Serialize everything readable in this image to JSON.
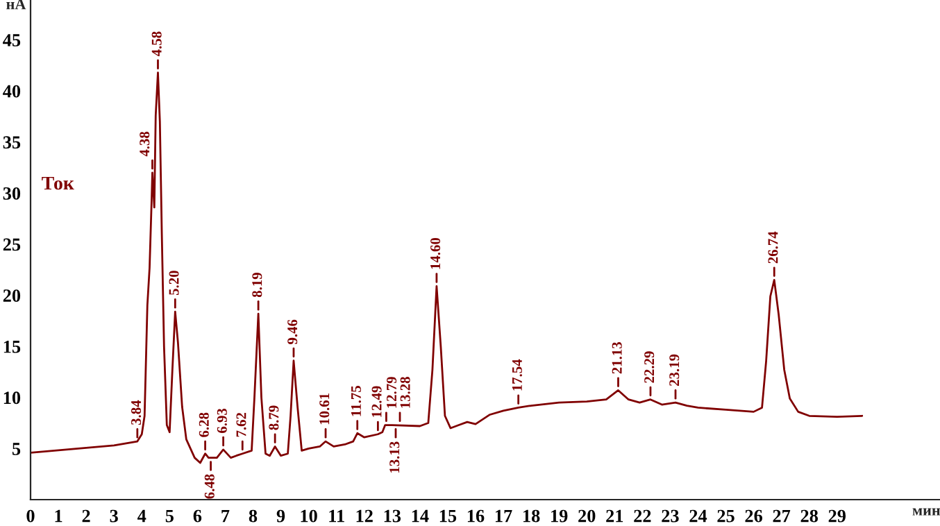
{
  "chart_data": {
    "type": "line",
    "xlabel": "мин",
    "ylabel": "нА",
    "xlim": [
      0,
      32.7
    ],
    "ylim": [
      0,
      48.9
    ],
    "xticks": [
      0,
      1,
      2,
      3,
      4,
      5,
      6,
      7,
      8,
      9,
      10,
      11,
      12,
      13,
      14,
      15,
      16,
      17,
      18,
      19,
      20,
      21,
      22,
      23,
      24,
      25,
      26,
      27,
      28,
      29
    ],
    "yticks": [
      5,
      10,
      15,
      20,
      25,
      30,
      35,
      40,
      45
    ],
    "grid": false,
    "legend": false,
    "marker": "none",
    "line_style": "solid",
    "series": [
      {
        "name": "Ток",
        "color": "#800000",
        "x": [
          0,
          3,
          3.84,
          4.0,
          4.1,
          4.2,
          4.28,
          4.35,
          4.38,
          4.45,
          4.5,
          4.58,
          4.65,
          4.72,
          4.8,
          4.9,
          5.0,
          5.1,
          5.2,
          5.3,
          5.45,
          5.6,
          5.9,
          6.1,
          6.28,
          6.4,
          6.7,
          6.93,
          7.2,
          7.4,
          7.62,
          7.95,
          8.05,
          8.19,
          8.3,
          8.45,
          8.6,
          8.79,
          9.0,
          9.25,
          9.35,
          9.46,
          9.6,
          9.75,
          10.0,
          10.4,
          10.61,
          10.9,
          11.3,
          11.6,
          11.75,
          12.0,
          12.49,
          12.65,
          12.75,
          13.0,
          14.0,
          14.3,
          14.45,
          14.6,
          14.75,
          14.9,
          15.1,
          15.4,
          15.7,
          16,
          16.5,
          17,
          17.54,
          18,
          19,
          20,
          20.7,
          21.13,
          21.5,
          21.9,
          22.29,
          22.7,
          23.19,
          23.6,
          24,
          25,
          26,
          26.3,
          26.45,
          26.6,
          26.74,
          26.9,
          27.1,
          27.3,
          27.6,
          28,
          29,
          29.9
        ],
        "values": [
          4.6,
          5.3,
          5.7,
          6.4,
          8.2,
          19,
          22.7,
          29,
          32,
          28.6,
          37.6,
          41.8,
          37,
          26,
          15,
          7.3,
          6.6,
          12.7,
          18.4,
          15.4,
          9.1,
          5.9,
          4.1,
          3.6,
          4.5,
          4.1,
          4.1,
          4.9,
          4.1,
          4.3,
          4.5,
          4.8,
          10,
          18.2,
          10,
          4.5,
          4.3,
          5.2,
          4.3,
          4.5,
          8.2,
          13.6,
          9.1,
          4.8,
          5.0,
          5.2,
          5.7,
          5.2,
          5.4,
          5.7,
          6.5,
          6.1,
          6.4,
          6.6,
          7.3,
          7.3,
          7.2,
          7.5,
          12.7,
          20.9,
          15,
          8.2,
          7.0,
          7.3,
          7.6,
          7.4,
          8.3,
          8.7,
          9.0,
          9.2,
          9.5,
          9.6,
          9.8,
          10.7,
          9.8,
          9.5,
          9.8,
          9.3,
          9.5,
          9.2,
          9.0,
          8.8,
          8.6,
          9.0,
          13.6,
          19.9,
          21.5,
          18.1,
          12.7,
          9.9,
          8.6,
          8.2,
          8.1,
          8.2
        ]
      }
    ],
    "annotations": [
      {
        "text": "3.84",
        "x": 3.84,
        "y": 5.7
      },
      {
        "text": "4.38",
        "x": 4.38,
        "y": 32
      },
      {
        "text": "4.58",
        "x": 4.58,
        "y": 41.8
      },
      {
        "text": "5.20",
        "x": 5.2,
        "y": 18.4
      },
      {
        "text": "6.28",
        "x": 6.28,
        "y": 4.5
      },
      {
        "text": "6.48",
        "x": 6.48,
        "y": 4.1
      },
      {
        "text": "6.93",
        "x": 6.93,
        "y": 4.9
      },
      {
        "text": "7.62",
        "x": 7.62,
        "y": 4.5
      },
      {
        "text": "8.19",
        "x": 8.19,
        "y": 18.2
      },
      {
        "text": "8.79",
        "x": 8.79,
        "y": 5.2
      },
      {
        "text": "9.46",
        "x": 9.46,
        "y": 13.6
      },
      {
        "text": "10.61",
        "x": 10.61,
        "y": 5.7
      },
      {
        "text": "11.75",
        "x": 11.75,
        "y": 6.5
      },
      {
        "text": "12.49",
        "x": 12.49,
        "y": 6.4
      },
      {
        "text": "12.79",
        "x": 12.79,
        "y": 7.3
      },
      {
        "text": "13.13",
        "x": 13.13,
        "y": 7.3
      },
      {
        "text": "13.28",
        "x": 13.28,
        "y": 7.3
      },
      {
        "text": "14.60",
        "x": 14.6,
        "y": 20.9
      },
      {
        "text": "17.54",
        "x": 17.54,
        "y": 9.0
      },
      {
        "text": "21.13",
        "x": 21.13,
        "y": 10.7
      },
      {
        "text": "22.29",
        "x": 22.29,
        "y": 9.8
      },
      {
        "text": "23.19",
        "x": 23.19,
        "y": 9.5
      },
      {
        "text": "26.74",
        "x": 26.74,
        "y": 21.5
      }
    ]
  }
}
